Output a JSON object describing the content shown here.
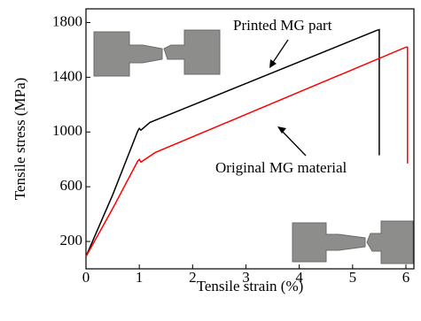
{
  "chart_data": {
    "type": "line",
    "xlabel": "Tensile strain (%)",
    "ylabel": "Tensile stress (MPa)",
    "xlim": [
      0,
      6.15
    ],
    "ylim": [
      0,
      1900
    ],
    "xticks": [
      0,
      1,
      2,
      3,
      4,
      5,
      6
    ],
    "yticks": [
      200,
      600,
      1000,
      1400,
      1800
    ],
    "series": [
      {
        "name": "Printed MG part",
        "color": "#000000",
        "x": [
          0,
          0.5,
          0.97,
          1.0,
          1.03,
          1.2,
          5.45,
          5.5,
          5.5
        ],
        "values": [
          90,
          540,
          1006,
          1026,
          1013,
          1070,
          1742,
          1748,
          830
        ]
      },
      {
        "name": "Original MG material",
        "color": "#ff0000",
        "x": [
          0,
          0.5,
          0.97,
          1.0,
          1.03,
          1.3,
          6.0,
          6.03,
          6.03
        ],
        "values": [
          90,
          440,
          787,
          800,
          780,
          850,
          1620,
          1620,
          770
        ]
      }
    ]
  }
}
